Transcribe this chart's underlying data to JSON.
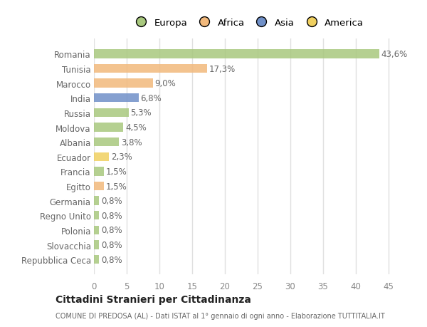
{
  "countries": [
    "Romania",
    "Tunisia",
    "Marocco",
    "India",
    "Russia",
    "Moldova",
    "Albania",
    "Ecuador",
    "Francia",
    "Egitto",
    "Germania",
    "Regno Unito",
    "Polonia",
    "Slovacchia",
    "Repubblica Ceca"
  ],
  "values": [
    43.6,
    17.3,
    9.0,
    6.8,
    5.3,
    4.5,
    3.8,
    2.3,
    1.5,
    1.5,
    0.8,
    0.8,
    0.8,
    0.8,
    0.8
  ],
  "labels": [
    "43,6%",
    "17,3%",
    "9,0%",
    "6,8%",
    "5,3%",
    "4,5%",
    "3,8%",
    "2,3%",
    "1,5%",
    "1,5%",
    "0,8%",
    "0,8%",
    "0,8%",
    "0,8%",
    "0,8%"
  ],
  "continents": [
    "Europa",
    "Africa",
    "Africa",
    "Asia",
    "Europa",
    "Europa",
    "Europa",
    "America",
    "Europa",
    "Africa",
    "Europa",
    "Europa",
    "Europa",
    "Europa",
    "Europa"
  ],
  "continent_colors": {
    "Europa": "#a8c87e",
    "Africa": "#f2b97c",
    "Asia": "#7090c8",
    "America": "#f0d060"
  },
  "legend_order": [
    "Europa",
    "Africa",
    "Asia",
    "America"
  ],
  "legend_colors": [
    "#a8c87e",
    "#f2b97c",
    "#7090c8",
    "#f0d060"
  ],
  "title": "Cittadini Stranieri per Cittadinanza",
  "subtitle": "COMUNE DI PREDOSA (AL) - Dati ISTAT al 1° gennaio di ogni anno - Elaborazione TUTTITALIA.IT",
  "xlim": [
    0,
    47
  ],
  "xticks": [
    0,
    5,
    10,
    15,
    20,
    25,
    30,
    35,
    40,
    45
  ],
  "background_color": "#ffffff",
  "grid_color": "#e0e0e0",
  "bar_height": 0.6,
  "label_fontsize": 8.5,
  "ytick_fontsize": 8.5,
  "xtick_fontsize": 8.5
}
